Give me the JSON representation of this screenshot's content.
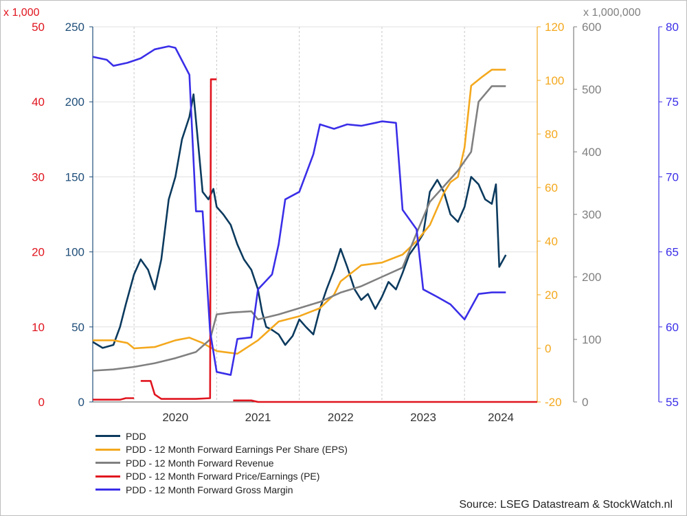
{
  "chart_data": {
    "type": "line",
    "title": "",
    "source": "Source: LSEG Datastream & StockWatch.nl",
    "x_ticks": [
      "2020",
      "2021",
      "2022",
      "2023",
      "2024"
    ],
    "x_range": [
      2019.5,
      2024.88
    ],
    "axes": {
      "pe": {
        "multiplier": "x 1,000",
        "color": "#e0141e",
        "ticks": [
          "0",
          "10",
          "20",
          "30",
          "40",
          "50"
        ],
        "range": [
          0,
          50
        ]
      },
      "pdd": {
        "multiplier": "",
        "color": "#1f4e79",
        "ticks": [
          "0",
          "50",
          "100",
          "150",
          "200",
          "250"
        ],
        "range": [
          0,
          250
        ]
      },
      "eps": {
        "multiplier": "",
        "color": "#f4a81d",
        "ticks": [
          "-20",
          "0",
          "20",
          "40",
          "60",
          "80",
          "100",
          "120"
        ],
        "range": [
          -20,
          120
        ]
      },
      "rev": {
        "multiplier": "x 1,000,000",
        "color": "#7f7f7f",
        "ticks": [
          "0",
          "100",
          "200",
          "300",
          "400",
          "500",
          "600"
        ],
        "range": [
          0,
          600
        ]
      },
      "gm": {
        "multiplier": "",
        "color": "#3a2ee8",
        "ticks": [
          "55",
          "60",
          "65",
          "70",
          "75",
          "80"
        ],
        "range": [
          55,
          80
        ]
      }
    },
    "series": [
      {
        "name": "PDD",
        "axis": "pdd",
        "color": "#0b3a5e",
        "points": [
          [
            2019.5,
            40
          ],
          [
            2019.62,
            36
          ],
          [
            2019.75,
            38
          ],
          [
            2019.83,
            50
          ],
          [
            2019.9,
            65
          ],
          [
            2020.0,
            85
          ],
          [
            2020.08,
            95
          ],
          [
            2020.17,
            88
          ],
          [
            2020.25,
            75
          ],
          [
            2020.33,
            95
          ],
          [
            2020.42,
            135
          ],
          [
            2020.5,
            150
          ],
          [
            2020.58,
            175
          ],
          [
            2020.67,
            190
          ],
          [
            2020.72,
            205
          ],
          [
            2020.78,
            170
          ],
          [
            2020.83,
            140
          ],
          [
            2020.9,
            135
          ],
          [
            2020.96,
            142
          ],
          [
            2021.0,
            130
          ],
          [
            2021.08,
            125
          ],
          [
            2021.17,
            118
          ],
          [
            2021.25,
            105
          ],
          [
            2021.33,
            95
          ],
          [
            2021.42,
            88
          ],
          [
            2021.5,
            75
          ],
          [
            2021.55,
            60
          ],
          [
            2021.6,
            50
          ],
          [
            2021.67,
            48
          ],
          [
            2021.75,
            45
          ],
          [
            2021.83,
            38
          ],
          [
            2021.92,
            44
          ],
          [
            2022.0,
            55
          ],
          [
            2022.08,
            50
          ],
          [
            2022.17,
            45
          ],
          [
            2022.25,
            62
          ],
          [
            2022.33,
            75
          ],
          [
            2022.42,
            88
          ],
          [
            2022.5,
            102
          ],
          [
            2022.58,
            90
          ],
          [
            2022.67,
            75
          ],
          [
            2022.75,
            68
          ],
          [
            2022.83,
            72
          ],
          [
            2022.92,
            62
          ],
          [
            2023.0,
            70
          ],
          [
            2023.08,
            80
          ],
          [
            2023.17,
            75
          ],
          [
            2023.25,
            86
          ],
          [
            2023.33,
            98
          ],
          [
            2023.42,
            105
          ],
          [
            2023.5,
            112
          ],
          [
            2023.58,
            140
          ],
          [
            2023.67,
            148
          ],
          [
            2023.75,
            140
          ],
          [
            2023.83,
            125
          ],
          [
            2023.92,
            120
          ],
          [
            2024.0,
            130
          ],
          [
            2024.08,
            150
          ],
          [
            2024.17,
            145
          ],
          [
            2024.25,
            135
          ],
          [
            2024.33,
            132
          ],
          [
            2024.38,
            145
          ],
          [
            2024.42,
            90
          ],
          [
            2024.5,
            98
          ]
        ]
      },
      {
        "name": "PDD - 12 Month Forward Earnings Per Share (EPS)",
        "axis": "eps",
        "color": "#f4a81d",
        "points": [
          [
            2019.5,
            3
          ],
          [
            2019.75,
            3
          ],
          [
            2019.92,
            2
          ],
          [
            2020.0,
            0
          ],
          [
            2020.25,
            0.5
          ],
          [
            2020.5,
            3
          ],
          [
            2020.67,
            4
          ],
          [
            2020.83,
            2
          ],
          [
            2021.0,
            -1
          ],
          [
            2021.25,
            -2
          ],
          [
            2021.5,
            3
          ],
          [
            2021.75,
            10
          ],
          [
            2022.0,
            12
          ],
          [
            2022.25,
            15
          ],
          [
            2022.42,
            20
          ],
          [
            2022.5,
            25
          ],
          [
            2022.75,
            31
          ],
          [
            2023.0,
            32
          ],
          [
            2023.25,
            35
          ],
          [
            2023.42,
            40
          ],
          [
            2023.58,
            46
          ],
          [
            2023.75,
            58
          ],
          [
            2023.83,
            62
          ],
          [
            2023.92,
            64
          ],
          [
            2024.0,
            75
          ],
          [
            2024.08,
            98
          ],
          [
            2024.2,
            101
          ],
          [
            2024.33,
            104
          ],
          [
            2024.5,
            104
          ]
        ]
      },
      {
        "name": "PDD - 12 Month Forward Revenue",
        "axis": "rev",
        "color": "#808080",
        "points": [
          [
            2019.5,
            50
          ],
          [
            2019.75,
            52
          ],
          [
            2020.0,
            56
          ],
          [
            2020.25,
            62
          ],
          [
            2020.5,
            70
          ],
          [
            2020.75,
            80
          ],
          [
            2020.92,
            100
          ],
          [
            2021.0,
            140
          ],
          [
            2021.17,
            143
          ],
          [
            2021.42,
            145
          ],
          [
            2021.5,
            132
          ],
          [
            2021.75,
            140
          ],
          [
            2022.0,
            150
          ],
          [
            2022.25,
            160
          ],
          [
            2022.5,
            175
          ],
          [
            2022.75,
            185
          ],
          [
            2023.0,
            200
          ],
          [
            2023.25,
            215
          ],
          [
            2023.42,
            270
          ],
          [
            2023.58,
            320
          ],
          [
            2023.75,
            345
          ],
          [
            2023.92,
            370
          ],
          [
            2024.08,
            400
          ],
          [
            2024.17,
            480
          ],
          [
            2024.33,
            505
          ],
          [
            2024.5,
            505
          ]
        ]
      },
      {
        "name": "PDD - 12 Month Forward Price/Earnings (PE)",
        "axis": "pe",
        "color": "#e0141e",
        "segments": [
          [
            [
              2019.5,
              0.3
            ],
            [
              2019.83,
              0.3
            ],
            [
              2019.9,
              0.5
            ],
            [
              2020.0,
              0.5
            ]
          ],
          [
            [
              2020.08,
              2.8
            ],
            [
              2020.2,
              2.8
            ],
            [
              2020.25,
              1.0
            ],
            [
              2020.33,
              0.4
            ],
            [
              2020.75,
              0.4
            ],
            [
              2020.92,
              0.5
            ],
            [
              2020.93,
              43
            ],
            [
              2021.0,
              43
            ]
          ],
          [
            [
              2021.2,
              0.2
            ],
            [
              2021.42,
              0.2
            ],
            [
              2021.5,
              0
            ],
            [
              2024.88,
              0
            ]
          ]
        ]
      },
      {
        "name": "PDD - 12 Month Forward Gross Margin",
        "axis": "gm",
        "color": "#3a2ee8",
        "points": [
          [
            2019.5,
            78
          ],
          [
            2019.67,
            77.8
          ],
          [
            2019.75,
            77.4
          ],
          [
            2019.92,
            77.6
          ],
          [
            2020.08,
            77.9
          ],
          [
            2020.25,
            78.5
          ],
          [
            2020.42,
            78.7
          ],
          [
            2020.5,
            78.6
          ],
          [
            2020.67,
            76.8
          ],
          [
            2020.75,
            67.7
          ],
          [
            2020.83,
            67.7
          ],
          [
            2020.92,
            59.7
          ],
          [
            2021.0,
            57.0
          ],
          [
            2021.17,
            56.8
          ],
          [
            2021.25,
            59.2
          ],
          [
            2021.42,
            59.3
          ],
          [
            2021.5,
            62.5
          ],
          [
            2021.67,
            63.5
          ],
          [
            2021.75,
            65.5
          ],
          [
            2021.83,
            68.5
          ],
          [
            2022.0,
            69.0
          ],
          [
            2022.17,
            71.5
          ],
          [
            2022.25,
            73.5
          ],
          [
            2022.42,
            73.2
          ],
          [
            2022.58,
            73.5
          ],
          [
            2022.75,
            73.4
          ],
          [
            2022.92,
            73.6
          ],
          [
            2023.0,
            73.7
          ],
          [
            2023.17,
            73.6
          ],
          [
            2023.25,
            67.8
          ],
          [
            2023.42,
            66.5
          ],
          [
            2023.5,
            62.5
          ],
          [
            2023.67,
            62.0
          ],
          [
            2023.83,
            61.5
          ],
          [
            2024.0,
            60.5
          ],
          [
            2024.17,
            62.2
          ],
          [
            2024.33,
            62.3
          ],
          [
            2024.5,
            62.3
          ]
        ]
      }
    ]
  }
}
